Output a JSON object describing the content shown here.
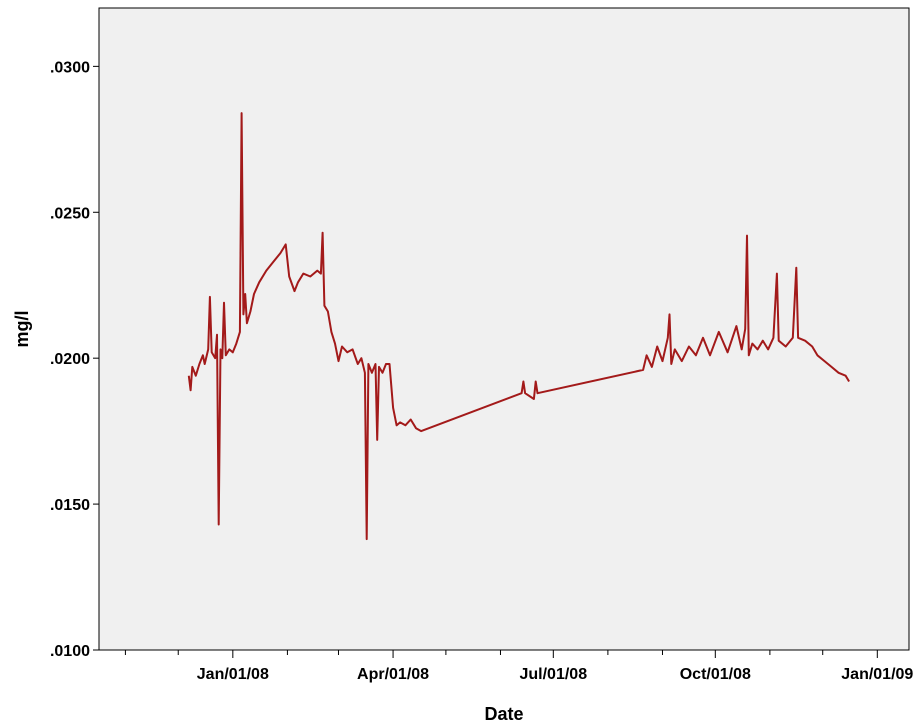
{
  "chart_data": {
    "type": "line",
    "title": "",
    "xlabel": "Date",
    "ylabel": "mg/l",
    "y_ticks": [
      ".0100",
      ".0150",
      ".0200",
      ".0250",
      ".0300"
    ],
    "x_tick_labels": [
      "Jan/01/08",
      "Apr/01/08",
      "Jul/01/08",
      "Oct/01/08",
      "Jan/01/09"
    ],
    "xlim": [
      "2007-10-17",
      "2009-01-19"
    ],
    "ylim": [
      0.01,
      0.032
    ],
    "grid": false,
    "plot_background": "#f0f0f0",
    "line_color": "#a31a1a",
    "series": [
      {
        "points": [
          [
            "2007-12-07",
            0.0194
          ],
          [
            "2007-12-08",
            0.0189
          ],
          [
            "2007-12-09",
            0.0197
          ],
          [
            "2007-12-11",
            0.0194
          ],
          [
            "2007-12-13",
            0.0198
          ],
          [
            "2007-12-15",
            0.0201
          ],
          [
            "2007-12-16",
            0.0198
          ],
          [
            "2007-12-18",
            0.0203
          ],
          [
            "2007-12-19",
            0.0221
          ],
          [
            "2007-12-20",
            0.0202
          ],
          [
            "2007-12-22",
            0.02
          ],
          [
            "2007-12-23",
            0.0208
          ],
          [
            "2007-12-24",
            0.0143
          ],
          [
            "2007-12-25",
            0.0203
          ],
          [
            "2007-12-26",
            0.02
          ],
          [
            "2007-12-27",
            0.0219
          ],
          [
            "2007-12-28",
            0.0201
          ],
          [
            "2007-12-30",
            0.0203
          ],
          [
            "2008-01-01",
            0.0202
          ],
          [
            "2008-01-03",
            0.0205
          ],
          [
            "2008-01-05",
            0.0209
          ],
          [
            "2008-01-06",
            0.0284
          ],
          [
            "2008-01-07",
            0.0215
          ],
          [
            "2008-01-08",
            0.0222
          ],
          [
            "2008-01-09",
            0.0212
          ],
          [
            "2008-01-11",
            0.0216
          ],
          [
            "2008-01-13",
            0.0222
          ],
          [
            "2008-01-16",
            0.0226
          ],
          [
            "2008-01-20",
            0.023
          ],
          [
            "2008-01-24",
            0.0233
          ],
          [
            "2008-01-28",
            0.0236
          ],
          [
            "2008-01-31",
            0.0239
          ],
          [
            "2008-02-02",
            0.0228
          ],
          [
            "2008-02-05",
            0.0223
          ],
          [
            "2008-02-07",
            0.0226
          ],
          [
            "2008-02-10",
            0.0229
          ],
          [
            "2008-02-14",
            0.0228
          ],
          [
            "2008-02-18",
            0.023
          ],
          [
            "2008-02-20",
            0.0229
          ],
          [
            "2008-02-21",
            0.0243
          ],
          [
            "2008-02-22",
            0.0218
          ],
          [
            "2008-02-24",
            0.0216
          ],
          [
            "2008-02-26",
            0.0209
          ],
          [
            "2008-02-28",
            0.0205
          ],
          [
            "2008-03-01",
            0.0199
          ],
          [
            "2008-03-03",
            0.0204
          ],
          [
            "2008-03-06",
            0.0202
          ],
          [
            "2008-03-09",
            0.0203
          ],
          [
            "2008-03-12",
            0.0198
          ],
          [
            "2008-03-14",
            0.02
          ],
          [
            "2008-03-16",
            0.0195
          ],
          [
            "2008-03-17",
            0.0138
          ],
          [
            "2008-03-18",
            0.0198
          ],
          [
            "2008-03-20",
            0.0195
          ],
          [
            "2008-03-22",
            0.0198
          ],
          [
            "2008-03-23",
            0.0172
          ],
          [
            "2008-03-24",
            0.0197
          ],
          [
            "2008-03-26",
            0.0195
          ],
          [
            "2008-03-28",
            0.0198
          ],
          [
            "2008-03-30",
            0.0198
          ],
          [
            "2008-04-01",
            0.0183
          ],
          [
            "2008-04-03",
            0.0177
          ],
          [
            "2008-04-05",
            0.0178
          ],
          [
            "2008-04-08",
            0.0177
          ],
          [
            "2008-04-11",
            0.0179
          ],
          [
            "2008-04-14",
            0.0176
          ],
          [
            "2008-04-17",
            0.0175
          ],
          [
            "2008-06-13",
            0.0188
          ],
          [
            "2008-06-14",
            0.0192
          ],
          [
            "2008-06-15",
            0.0188
          ],
          [
            "2008-06-20",
            0.0186
          ],
          [
            "2008-06-21",
            0.0192
          ],
          [
            "2008-06-22",
            0.0188
          ],
          [
            "2008-08-21",
            0.0196
          ],
          [
            "2008-08-23",
            0.0201
          ],
          [
            "2008-08-26",
            0.0197
          ],
          [
            "2008-08-29",
            0.0204
          ],
          [
            "2008-09-01",
            0.0199
          ],
          [
            "2008-09-04",
            0.0207
          ],
          [
            "2008-09-05",
            0.0215
          ],
          [
            "2008-09-06",
            0.0198
          ],
          [
            "2008-09-08",
            0.0203
          ],
          [
            "2008-09-12",
            0.0199
          ],
          [
            "2008-09-16",
            0.0204
          ],
          [
            "2008-09-20",
            0.0201
          ],
          [
            "2008-09-24",
            0.0207
          ],
          [
            "2008-09-28",
            0.0201
          ],
          [
            "2008-10-03",
            0.0209
          ],
          [
            "2008-10-08",
            0.0202
          ],
          [
            "2008-10-13",
            0.0211
          ],
          [
            "2008-10-16",
            0.0203
          ],
          [
            "2008-10-18",
            0.021
          ],
          [
            "2008-10-19",
            0.0242
          ],
          [
            "2008-10-20",
            0.0201
          ],
          [
            "2008-10-22",
            0.0205
          ],
          [
            "2008-10-25",
            0.0203
          ],
          [
            "2008-10-28",
            0.0206
          ],
          [
            "2008-10-31",
            0.0203
          ],
          [
            "2008-11-03",
            0.0207
          ],
          [
            "2008-11-05",
            0.0229
          ],
          [
            "2008-11-06",
            0.0206
          ],
          [
            "2008-11-10",
            0.0204
          ],
          [
            "2008-11-14",
            0.0207
          ],
          [
            "2008-11-16",
            0.0231
          ],
          [
            "2008-11-17",
            0.0207
          ],
          [
            "2008-11-21",
            0.0206
          ],
          [
            "2008-11-25",
            0.0204
          ],
          [
            "2008-11-28",
            0.0201
          ],
          [
            "2008-12-02",
            0.0199
          ],
          [
            "2008-12-06",
            0.0197
          ],
          [
            "2008-12-10",
            0.0195
          ],
          [
            "2008-12-14",
            0.0194
          ],
          [
            "2008-12-16",
            0.0192
          ]
        ]
      }
    ]
  }
}
